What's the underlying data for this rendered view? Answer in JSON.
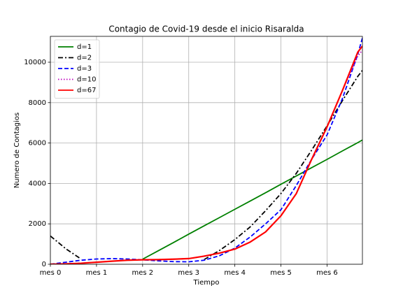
{
  "chart_data": {
    "type": "line",
    "title": "Contagio de Covid-19 desde el inicio Risaralda",
    "xlabel": "Tiempo",
    "ylabel": "Numero de Contagios",
    "x": [
      0,
      10,
      20,
      30,
      40,
      50,
      60,
      70,
      80,
      90,
      100,
      110,
      120,
      130,
      140,
      150,
      160,
      170,
      180,
      190,
      200,
      203
    ],
    "series": [
      {
        "name": "d=1",
        "color": "#008000",
        "linestyle": "solid",
        "values": [
          null,
          null,
          null,
          null,
          null,
          null,
          250,
          660,
          1070,
          1490,
          1900,
          2310,
          2720,
          3130,
          3540,
          3960,
          4370,
          4780,
          5190,
          5610,
          6020,
          6150
        ]
      },
      {
        "name": "d=2",
        "color": "#000000",
        "linestyle": "dashdot",
        "values": [
          1400,
          770,
          255,
          null,
          null,
          null,
          null,
          null,
          null,
          null,
          230,
          680,
          1220,
          1850,
          2650,
          3500,
          4500,
          5650,
          6850,
          8100,
          9300,
          9600
        ]
      },
      {
        "name": "d=3",
        "color": "#0000ff",
        "linestyle": "dashed",
        "values": [
          0,
          100,
          200,
          260,
          280,
          260,
          220,
          170,
          130,
          120,
          200,
          420,
          800,
          1350,
          2000,
          2700,
          3900,
          5200,
          6400,
          8200,
          10400,
          11200
        ]
      },
      {
        "name": "d=10",
        "color": "#bf00bf",
        "linestyle": "dotted",
        "values": [
          0,
          20,
          50,
          100,
          150,
          200,
          220,
          230,
          250,
          280,
          400,
          550,
          750,
          1100,
          1600,
          2400,
          3500,
          5200,
          6800,
          8600,
          10300,
          10600
        ]
      },
      {
        "name": "d=67",
        "color": "#ff0000",
        "linestyle": "solid",
        "values": [
          0,
          20,
          50,
          100,
          150,
          200,
          220,
          230,
          250,
          280,
          400,
          550,
          750,
          1100,
          1600,
          2400,
          3500,
          5200,
          6800,
          8600,
          10500,
          10800
        ]
      }
    ],
    "xlim": [
      0,
      203
    ],
    "xticks": [
      {
        "value": 0,
        "label": "mes 0"
      },
      {
        "value": 30,
        "label": "mes 1"
      },
      {
        "value": 60,
        "label": "mes 2"
      },
      {
        "value": 90,
        "label": "mes 3"
      },
      {
        "value": 120,
        "label": "mes 4"
      },
      {
        "value": 150,
        "label": "mes 5"
      },
      {
        "value": 180,
        "label": "mes 6"
      }
    ],
    "ylim": [
      0,
      11280
    ],
    "yticks": [
      0,
      2000,
      4000,
      6000,
      8000,
      10000
    ],
    "grid": true,
    "legend": "upper left"
  }
}
